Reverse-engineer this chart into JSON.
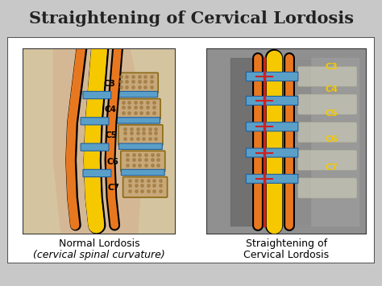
{
  "title": "Straightening of Cervical Lordosis",
  "title_fontsize": 15,
  "title_color": "#222222",
  "background_color": "#c8c8c8",
  "panel_bg": "#ffffff",
  "header_bg": "#e8e8e8",
  "left_caption_line1": "Normal Lordosis",
  "left_caption_line2": "(cervical spinal curvature)",
  "right_caption_line1": "Straightening of",
  "right_caption_line2": "Cervical Lordosis",
  "caption_fontsize": 9,
  "left_panel_color": "#d4c5a0",
  "right_panel_color": "#888888",
  "spine_yellow": "#f5c800",
  "spine_blue": "#5a9fc8",
  "spine_orange": "#e87820",
  "spine_bone": "#c8a878",
  "red_line": "#cc2222",
  "label_yellow": "#f5c800",
  "vertebra_labels": [
    "C3",
    "C4",
    "C5",
    "C6",
    "C7"
  ],
  "border_color": "#555555",
  "watermark_color": "#999999"
}
